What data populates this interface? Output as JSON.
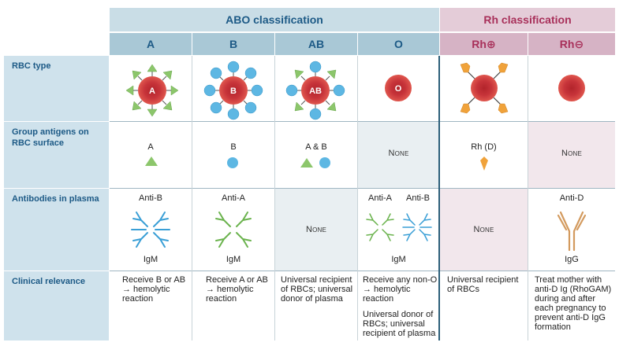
{
  "header": {
    "abo_title": "ABO classification",
    "rh_title": "Rh classification",
    "columns": [
      "A",
      "B",
      "AB",
      "O",
      "Rh⊕",
      "Rh⊖"
    ]
  },
  "rows": {
    "rbc_type": "RBC type",
    "antigens": "Group antigens on RBC surface",
    "antibodies": "Antibodies in plasma",
    "clinical": "Clinical relevance"
  },
  "rbc_labels": [
    "A",
    "B",
    "AB",
    "O"
  ],
  "antigens": {
    "a": "A",
    "b": "B",
    "ab": "A & B",
    "o": "None",
    "rh_pos": "Rh (D)",
    "rh_neg": "None"
  },
  "antibodies": {
    "a_name": "Anti-B",
    "a_class": "IgM",
    "b_name": "Anti-A",
    "b_class": "IgM",
    "ab": "None",
    "o_name1": "Anti-A",
    "o_name2": "Anti-B",
    "o_class": "IgM",
    "rh_pos": "None",
    "rh_neg_name": "Anti-D",
    "rh_neg_class": "IgG"
  },
  "clinical": {
    "a": "Receive B or AB → hemolytic reaction",
    "b": "Receive A or AB → hemolytic reaction",
    "ab": "Universal recipient of RBCs; universal donor of plasma",
    "o1": "Receive any non-O → hemolytic reaction",
    "o2": "Universal donor of RBCs; universal recipient of plasma",
    "rh_pos": "Universal recipient of RBCs",
    "rh_neg": "Treat mother with anti-D Ig (RhoGAM) during and after each pregnancy to prevent anti-D IgG formation"
  },
  "colors": {
    "rbc_outer": "#d6453e",
    "rbc_inner": "#b2242b",
    "antigen_a": "#8cc66b",
    "antigen_b": "#5db7e3",
    "antigen_d": "#f0a23a",
    "antibody_a": "#3a9fd6",
    "antibody_b": "#6bb34e",
    "antibody_igg": "#d39a5e"
  }
}
